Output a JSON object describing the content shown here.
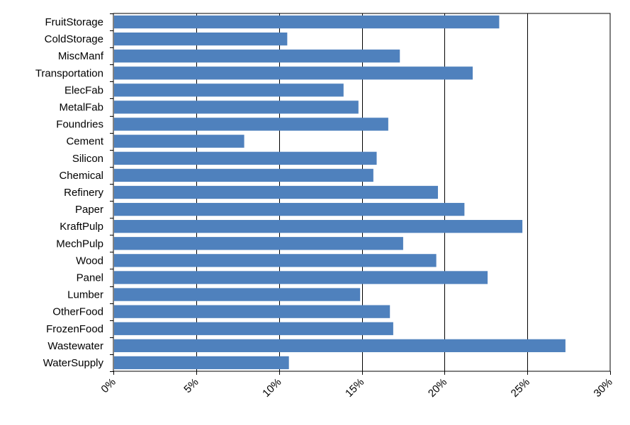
{
  "chart_data": {
    "type": "bar",
    "orientation": "horizontal",
    "title": "",
    "xlabel": "",
    "ylabel": "",
    "categories": [
      "FruitStorage",
      "ColdStorage",
      "MiscManf",
      "Transportation",
      "ElecFab",
      "MetalFab",
      "Foundries",
      "Cement",
      "Silicon",
      "Chemical",
      "Refinery",
      "Paper",
      "KraftPulp",
      "MechPulp",
      "Wood",
      "Panel",
      "Lumber",
      "OtherFood",
      "FrozenFood",
      "Wastewater",
      "WaterSupply"
    ],
    "values": [
      23.3,
      10.5,
      17.3,
      21.7,
      13.9,
      14.8,
      16.6,
      7.9,
      15.9,
      15.7,
      19.6,
      21.2,
      24.7,
      17.5,
      19.5,
      22.6,
      14.9,
      16.7,
      16.9,
      27.3,
      10.6
    ],
    "xlim": [
      0,
      30
    ],
    "x_ticks": [
      0,
      5,
      10,
      15,
      20,
      25,
      30
    ],
    "x_tick_labels": [
      "0%",
      "5%",
      "10%",
      "15%",
      "20%",
      "25%",
      "30%"
    ],
    "grid": "vertical major gridlines",
    "legend": "none",
    "bar_color": "#4F81BD"
  }
}
